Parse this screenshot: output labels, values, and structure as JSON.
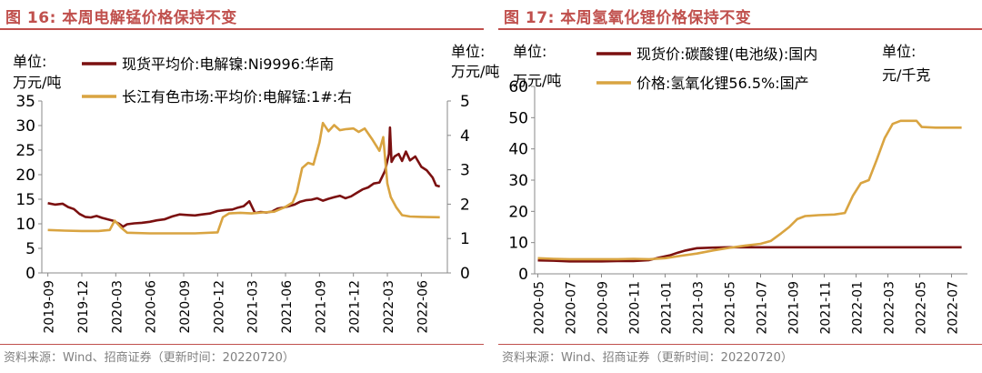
{
  "panels": [
    {
      "fig_title": "图 16:  本周电解锰价格保持不变",
      "source": "资料来源：Wind、招商证券（更新时间：20220720）"
    },
    {
      "fig_title": "图 17:  本周氢氧化锂价格保持不变",
      "source": "资料来源：Wind、招商证券（更新时间：20220720）"
    }
  ],
  "chart_data": [
    {
      "type": "line",
      "title": "",
      "left_axis": {
        "unit_lines": [
          "单位:",
          "万元/吨"
        ],
        "ylim": [
          0,
          35
        ],
        "ticks": [
          0,
          5,
          10,
          15,
          20,
          25,
          30,
          35
        ]
      },
      "right_axis": {
        "unit_lines": [
          "单位:",
          "万元/吨"
        ],
        "ylim": [
          0,
          5
        ],
        "ticks": [
          0,
          1,
          2,
          3,
          4,
          5
        ]
      },
      "x_ticks": [
        "2019-09",
        "2019-12",
        "2020-03",
        "2020-06",
        "2020-09",
        "2020-12",
        "2021-03",
        "2021-06",
        "2021-09",
        "2021-12",
        "2022-03",
        "2022-06"
      ],
      "legend_placement": "top",
      "series": [
        {
          "name": "现货平均价:电解镍:Ni9996:华南",
          "axis": "left",
          "color": "#7b1010",
          "points": [
            [
              "2019-09-01",
              14.2
            ],
            [
              "2019-09-20",
              13.9
            ],
            [
              "2019-10-10",
              14.1
            ],
            [
              "2019-10-25",
              13.4
            ],
            [
              "2019-11-10",
              13.0
            ],
            [
              "2019-11-25",
              12.0
            ],
            [
              "2019-12-10",
              11.4
            ],
            [
              "2019-12-25",
              11.3
            ],
            [
              "2020-01-10",
              11.6
            ],
            [
              "2020-01-25",
              11.2
            ],
            [
              "2020-02-10",
              10.9
            ],
            [
              "2020-02-25",
              10.6
            ],
            [
              "2020-03-10",
              10.0
            ],
            [
              "2020-03-20",
              9.4
            ],
            [
              "2020-04-01",
              9.9
            ],
            [
              "2020-04-20",
              10.1
            ],
            [
              "2020-05-10",
              10.2
            ],
            [
              "2020-06-01",
              10.4
            ],
            [
              "2020-06-20",
              10.7
            ],
            [
              "2020-07-10",
              10.9
            ],
            [
              "2020-08-01",
              11.5
            ],
            [
              "2020-08-20",
              11.9
            ],
            [
              "2020-09-10",
              11.8
            ],
            [
              "2020-10-01",
              11.7
            ],
            [
              "2020-10-20",
              11.9
            ],
            [
              "2020-11-10",
              12.1
            ],
            [
              "2020-12-01",
              12.6
            ],
            [
              "2020-12-20",
              12.8
            ],
            [
              "2021-01-10",
              12.9
            ],
            [
              "2021-01-25",
              13.3
            ],
            [
              "2021-02-10",
              13.6
            ],
            [
              "2021-02-25",
              14.6
            ],
            [
              "2021-03-10",
              12.2
            ],
            [
              "2021-03-25",
              12.4
            ],
            [
              "2021-04-10",
              12.3
            ],
            [
              "2021-04-25",
              12.5
            ],
            [
              "2021-05-10",
              13.1
            ],
            [
              "2021-05-25",
              13.3
            ],
            [
              "2021-06-10",
              13.6
            ],
            [
              "2021-06-25",
              13.9
            ],
            [
              "2021-07-10",
              14.5
            ],
            [
              "2021-07-25",
              14.8
            ],
            [
              "2021-08-10",
              14.9
            ],
            [
              "2021-08-25",
              15.2
            ],
            [
              "2021-09-10",
              14.7
            ],
            [
              "2021-09-25",
              15.1
            ],
            [
              "2021-10-10",
              15.4
            ],
            [
              "2021-10-25",
              15.7
            ],
            [
              "2021-11-10",
              15.2
            ],
            [
              "2021-11-25",
              15.6
            ],
            [
              "2021-12-10",
              16.3
            ],
            [
              "2021-12-25",
              17.0
            ],
            [
              "2022-01-10",
              17.4
            ],
            [
              "2022-01-25",
              18.2
            ],
            [
              "2022-02-10",
              18.4
            ],
            [
              "2022-02-25",
              20.8
            ],
            [
              "2022-03-05",
              24.2
            ],
            [
              "2022-03-08",
              29.6
            ],
            [
              "2022-03-12",
              22.6
            ],
            [
              "2022-03-20",
              23.7
            ],
            [
              "2022-04-01",
              24.2
            ],
            [
              "2022-04-10",
              22.8
            ],
            [
              "2022-04-20",
              24.7
            ],
            [
              "2022-05-01",
              22.9
            ],
            [
              "2022-05-15",
              23.7
            ],
            [
              "2022-06-01",
              21.6
            ],
            [
              "2022-06-15",
              20.9
            ],
            [
              "2022-07-01",
              19.4
            ],
            [
              "2022-07-10",
              17.8
            ],
            [
              "2022-07-20",
              17.6
            ]
          ]
        },
        {
          "name": "长江有色市场:平均价:电解锰:1#:右",
          "axis": "right",
          "color": "#d9a441",
          "points": [
            [
              "2019-09-01",
              1.25
            ],
            [
              "2019-10-15",
              1.23
            ],
            [
              "2019-12-01",
              1.22
            ],
            [
              "2020-01-15",
              1.22
            ],
            [
              "2020-02-15",
              1.25
            ],
            [
              "2020-02-28",
              1.52
            ],
            [
              "2020-03-15",
              1.32
            ],
            [
              "2020-04-01",
              1.17
            ],
            [
              "2020-06-01",
              1.15
            ],
            [
              "2020-08-01",
              1.15
            ],
            [
              "2020-10-01",
              1.15
            ],
            [
              "2020-12-01",
              1.18
            ],
            [
              "2020-12-15",
              1.62
            ],
            [
              "2021-01-01",
              1.73
            ],
            [
              "2021-02-01",
              1.75
            ],
            [
              "2021-03-01",
              1.73
            ],
            [
              "2021-04-01",
              1.76
            ],
            [
              "2021-05-01",
              1.78
            ],
            [
              "2021-06-01",
              1.92
            ],
            [
              "2021-06-20",
              2.05
            ],
            [
              "2021-07-01",
              2.35
            ],
            [
              "2021-07-15",
              3.05
            ],
            [
              "2021-08-01",
              3.2
            ],
            [
              "2021-08-15",
              3.15
            ],
            [
              "2021-09-01",
              3.8
            ],
            [
              "2021-09-10",
              4.36
            ],
            [
              "2021-09-25",
              4.12
            ],
            [
              "2021-10-10",
              4.3
            ],
            [
              "2021-10-25",
              4.15
            ],
            [
              "2021-11-10",
              4.18
            ],
            [
              "2021-12-01",
              4.2
            ],
            [
              "2021-12-15",
              4.1
            ],
            [
              "2022-01-01",
              4.2
            ],
            [
              "2022-01-20",
              3.9
            ],
            [
              "2022-02-10",
              3.55
            ],
            [
              "2022-02-20",
              3.95
            ],
            [
              "2022-03-01",
              2.6
            ],
            [
              "2022-03-10",
              2.2
            ],
            [
              "2022-03-25",
              1.9
            ],
            [
              "2022-04-10",
              1.68
            ],
            [
              "2022-05-01",
              1.64
            ],
            [
              "2022-06-01",
              1.63
            ],
            [
              "2022-07-20",
              1.62
            ]
          ]
        }
      ]
    },
    {
      "type": "line",
      "title": "",
      "left_axis": {
        "unit_lines": [
          "单位:",
          "万元/吨"
        ],
        "ylim": [
          0,
          60
        ],
        "ticks": [
          0,
          10,
          20,
          30,
          40,
          50,
          60
        ]
      },
      "right_axis_unit_lines": [
        "单位:",
        "元/千克"
      ],
      "x_ticks": [
        "2020-05",
        "2020-07",
        "2020-09",
        "2020-11",
        "2021-01",
        "2021-03",
        "2021-05",
        "2021-07",
        "2021-09",
        "2021-11",
        "2022-01",
        "2022-03",
        "2022-05",
        "2022-07"
      ],
      "legend_placement": "top",
      "series": [
        {
          "name": "现货价:碳酸锂(电池级):国内",
          "color": "#7b1010",
          "points": [
            [
              "2020-05-01",
              4.3
            ],
            [
              "2020-06-01",
              4.2
            ],
            [
              "2020-07-01",
              4.0
            ],
            [
              "2020-08-01",
              4.0
            ],
            [
              "2020-09-01",
              4.0
            ],
            [
              "2020-10-01",
              4.1
            ],
            [
              "2020-11-01",
              4.1
            ],
            [
              "2020-12-01",
              4.4
            ],
            [
              "2020-12-20",
              5.2
            ],
            [
              "2021-01-10",
              5.9
            ],
            [
              "2021-01-25",
              6.8
            ],
            [
              "2021-02-10",
              7.5
            ],
            [
              "2021-03-01",
              8.2
            ],
            [
              "2021-04-01",
              8.4
            ],
            [
              "2021-05-01",
              8.5
            ],
            [
              "2021-07-01",
              8.5
            ],
            [
              "2022-07-20",
              8.5
            ]
          ]
        },
        {
          "name": "价格:氢氧化锂56.5%:国产",
          "color": "#d9a441",
          "points": [
            [
              "2020-05-01",
              5.0
            ],
            [
              "2020-06-01",
              4.8
            ],
            [
              "2020-07-01",
              4.7
            ],
            [
              "2020-08-01",
              4.7
            ],
            [
              "2020-09-01",
              4.7
            ],
            [
              "2020-10-01",
              4.7
            ],
            [
              "2020-11-01",
              4.8
            ],
            [
              "2020-12-01",
              4.7
            ],
            [
              "2021-01-01",
              5.0
            ],
            [
              "2021-02-01",
              5.8
            ],
            [
              "2021-03-01",
              6.5
            ],
            [
              "2021-04-01",
              7.5
            ],
            [
              "2021-05-01",
              8.3
            ],
            [
              "2021-06-01",
              9.0
            ],
            [
              "2021-07-01",
              9.6
            ],
            [
              "2021-07-20",
              10.5
            ],
            [
              "2021-08-10",
              13.0
            ],
            [
              "2021-08-25",
              15.0
            ],
            [
              "2021-09-10",
              17.5
            ],
            [
              "2021-09-25",
              18.5
            ],
            [
              "2021-10-20",
              18.8
            ],
            [
              "2021-11-20",
              19.0
            ],
            [
              "2021-12-10",
              19.5
            ],
            [
              "2021-12-25",
              25.0
            ],
            [
              "2022-01-10",
              29.0
            ],
            [
              "2022-01-25",
              30.0
            ],
            [
              "2022-02-10",
              36.5
            ],
            [
              "2022-02-25",
              43.5
            ],
            [
              "2022-03-10",
              48.0
            ],
            [
              "2022-03-25",
              49.0
            ],
            [
              "2022-04-10",
              49.0
            ],
            [
              "2022-04-25",
              49.0
            ],
            [
              "2022-05-05",
              47.0
            ],
            [
              "2022-06-01",
              46.8
            ],
            [
              "2022-07-20",
              46.8
            ]
          ]
        }
      ]
    }
  ]
}
